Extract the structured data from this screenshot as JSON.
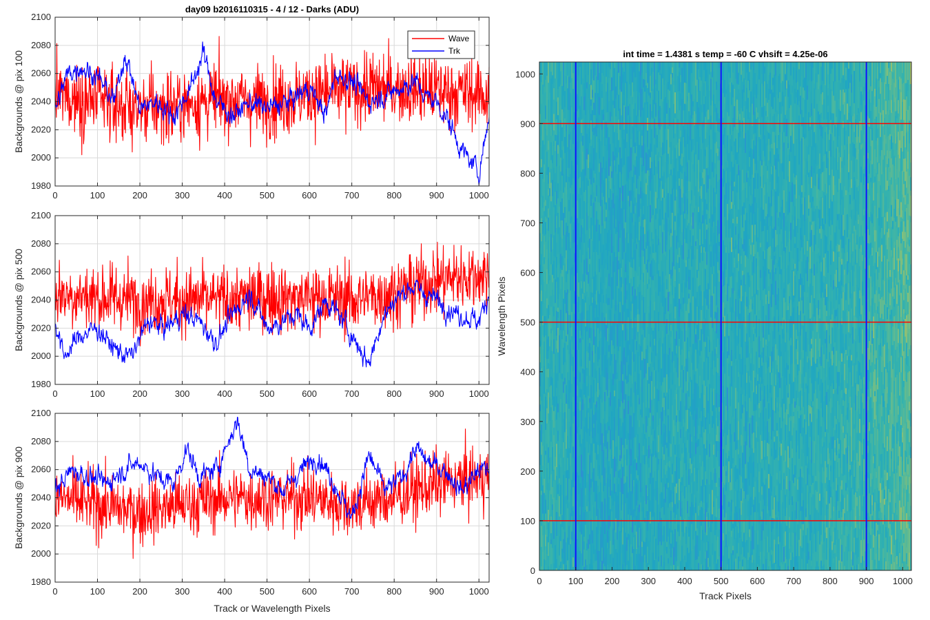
{
  "figure_title": "day09 b2016110315 - 4 / 12 - Darks (ADU)",
  "colors": {
    "wave": "#ff0000",
    "track": "#0000ff",
    "grid": "#d9d9d9",
    "axes": "#262626"
  },
  "chart_data": [
    {
      "type": "line",
      "title": "day09 b2016110315 - 4 / 12 - Darks (ADU)",
      "xlabel": "",
      "ylabel": "Backgrounds @ pix 100",
      "xlim": [
        0,
        1024
      ],
      "ylim": [
        1980,
        2100
      ],
      "xticks": [
        0,
        100,
        200,
        300,
        400,
        500,
        600,
        700,
        800,
        900,
        1000
      ],
      "yticks": [
        1980,
        2000,
        2020,
        2040,
        2060,
        2080,
        2100
      ],
      "grid": true,
      "legend": {
        "placement": "top-right",
        "entries": [
          "Wave",
          "Trk"
        ]
      },
      "series": [
        {
          "name": "Wave",
          "color": "#ff0000",
          "noise": 17,
          "x": [
            0,
            100,
            200,
            300,
            400,
            500,
            600,
            700,
            800,
            900,
            1024
          ],
          "y": [
            2045,
            2040,
            2035,
            2038,
            2042,
            2040,
            2045,
            2048,
            2050,
            2048,
            2045
          ]
        },
        {
          "name": "Trk",
          "color": "#0000ff",
          "noise": 5,
          "x": [
            0,
            30,
            60,
            100,
            140,
            165,
            200,
            240,
            280,
            320,
            350,
            380,
            420,
            460,
            500,
            550,
            600,
            640,
            660,
            700,
            740,
            780,
            820,
            850,
            870,
            900,
            930,
            960,
            1000,
            1024
          ],
          "y": [
            2035,
            2060,
            2065,
            2058,
            2040,
            2075,
            2035,
            2040,
            2030,
            2050,
            2075,
            2040,
            2030,
            2040,
            2035,
            2040,
            2050,
            2030,
            2060,
            2055,
            2040,
            2045,
            2050,
            2055,
            2045,
            2040,
            2025,
            2005,
            1990,
            2030
          ]
        }
      ]
    },
    {
      "type": "line",
      "title": "",
      "xlabel": "",
      "ylabel": "Backgrounds @ pix 500",
      "xlim": [
        0,
        1024
      ],
      "ylim": [
        1980,
        2100
      ],
      "xticks": [
        0,
        100,
        200,
        300,
        400,
        500,
        600,
        700,
        800,
        900,
        1000
      ],
      "yticks": [
        1980,
        2000,
        2020,
        2040,
        2060,
        2080,
        2100
      ],
      "grid": true,
      "series": [
        {
          "name": "Wave",
          "color": "#ff0000",
          "noise": 16,
          "x": [
            0,
            100,
            200,
            300,
            400,
            500,
            600,
            700,
            800,
            900,
            1024
          ],
          "y": [
            2045,
            2042,
            2040,
            2040,
            2040,
            2042,
            2042,
            2040,
            2045,
            2055,
            2058
          ]
        },
        {
          "name": "Trk",
          "color": "#0000ff",
          "noise": 5,
          "x": [
            0,
            20,
            60,
            100,
            140,
            180,
            220,
            260,
            300,
            340,
            380,
            420,
            460,
            500,
            540,
            570,
            600,
            640,
            680,
            710,
            740,
            770,
            800,
            840,
            870,
            900,
            950,
            1000,
            1024
          ],
          "y": [
            2025,
            2000,
            2015,
            2020,
            2005,
            2000,
            2025,
            2020,
            2030,
            2025,
            2010,
            2030,
            2045,
            2020,
            2025,
            2030,
            2020,
            2040,
            2025,
            2010,
            1995,
            2025,
            2040,
            2050,
            2045,
            2040,
            2030,
            2025,
            2045
          ]
        }
      ]
    },
    {
      "type": "line",
      "title": "",
      "xlabel": "Track or Wavelength Pixels",
      "ylabel": "Backgrounds @ pix 900",
      "xlim": [
        0,
        1024
      ],
      "ylim": [
        1980,
        2100
      ],
      "xticks": [
        0,
        100,
        200,
        300,
        400,
        500,
        600,
        700,
        800,
        900,
        1000
      ],
      "yticks": [
        1980,
        2000,
        2020,
        2040,
        2060,
        2080,
        2100
      ],
      "grid": true,
      "series": [
        {
          "name": "Wave",
          "color": "#ff0000",
          "noise": 15,
          "x": [
            0,
            100,
            200,
            300,
            400,
            500,
            600,
            700,
            800,
            900,
            1024
          ],
          "y": [
            2040,
            2035,
            2030,
            2035,
            2040,
            2040,
            2040,
            2035,
            2040,
            2050,
            2055
          ]
        },
        {
          "name": "Trk",
          "color": "#0000ff",
          "noise": 5,
          "x": [
            0,
            40,
            80,
            120,
            160,
            200,
            240,
            280,
            310,
            340,
            380,
            430,
            460,
            500,
            540,
            580,
            620,
            660,
            700,
            740,
            780,
            820,
            850,
            880,
            920,
            960,
            1000,
            1024
          ],
          "y": [
            2045,
            2060,
            2055,
            2050,
            2060,
            2065,
            2055,
            2050,
            2075,
            2055,
            2060,
            2095,
            2060,
            2055,
            2045,
            2060,
            2070,
            2050,
            2025,
            2070,
            2045,
            2055,
            2075,
            2065,
            2060,
            2045,
            2060,
            2060
          ]
        }
      ]
    },
    {
      "type": "heatmap",
      "title": "int time = 1.4381 s    temp = -60 C    vhsift = 4.25e-06",
      "xlabel": "Track Pixels",
      "ylabel": "Wavelength Pixels",
      "xlim": [
        0,
        1024
      ],
      "ylim": [
        0,
        1024
      ],
      "xticks": [
        0,
        100,
        200,
        300,
        400,
        500,
        600,
        700,
        800,
        900,
        1000
      ],
      "yticks": [
        0,
        100,
        200,
        300,
        400,
        500,
        600,
        700,
        800,
        900,
        1000
      ],
      "colormap": [
        "#2e8fd2",
        "#1fa6c2",
        "#36b3ac",
        "#7cbf80",
        "#c9c04d"
      ],
      "overlay": {
        "vertical_lines": {
          "x": [
            100,
            500,
            900
          ],
          "color": "#1010ff"
        },
        "horizontal_lines": {
          "y": [
            100,
            500,
            900
          ],
          "color": "#ff0000"
        }
      }
    }
  ]
}
